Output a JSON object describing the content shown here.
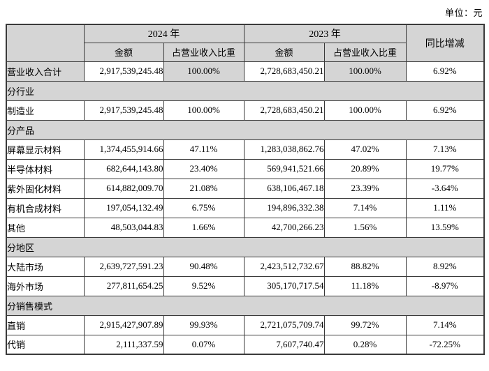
{
  "meta": {
    "unit_label": "单位：元"
  },
  "colors": {
    "header_bg": "#d5d5d5",
    "border": "#3a3a3a",
    "page_bg": "#ffffff"
  },
  "table": {
    "header": {
      "year_2024": "2024 年",
      "year_2023": "2023 年",
      "amount_2024": "金额",
      "ratio_2024": "占营业收入比重",
      "amount_2023": "金额",
      "ratio_2023": "占营业收入比重",
      "yoy": "同比增减"
    },
    "rows": [
      {
        "type": "data",
        "highlight": true,
        "label": "营业收入合计",
        "a2024": "2,917,539,245.48",
        "r2024": "100.00%",
        "a2023": "2,728,683,450.21",
        "r2023": "100.00%",
        "yoy": "6.92%"
      },
      {
        "type": "section",
        "label": "分行业"
      },
      {
        "type": "data",
        "highlight": false,
        "label": "制造业",
        "a2024": "2,917,539,245.48",
        "r2024": "100.00%",
        "a2023": "2,728,683,450.21",
        "r2023": "100.00%",
        "yoy": "6.92%"
      },
      {
        "type": "section",
        "label": "分产品"
      },
      {
        "type": "data",
        "highlight": false,
        "label": "屏幕显示材料",
        "a2024": "1,374,455,914.66",
        "r2024": "47.11%",
        "a2023": "1,283,038,862.76",
        "r2023": "47.02%",
        "yoy": "7.13%"
      },
      {
        "type": "data",
        "highlight": false,
        "label": "半导体材料",
        "a2024": "682,644,143.80",
        "r2024": "23.40%",
        "a2023": "569,941,521.66",
        "r2023": "20.89%",
        "yoy": "19.77%"
      },
      {
        "type": "data",
        "highlight": false,
        "label": "紫外固化材料",
        "a2024": "614,882,009.70",
        "r2024": "21.08%",
        "a2023": "638,106,467.18",
        "r2023": "23.39%",
        "yoy": "-3.64%"
      },
      {
        "type": "data",
        "highlight": false,
        "label": "有机合成材料",
        "a2024": "197,054,132.49",
        "r2024": "6.75%",
        "a2023": "194,896,332.38",
        "r2023": "7.14%",
        "yoy": "1.11%"
      },
      {
        "type": "data",
        "highlight": false,
        "label": "其他",
        "a2024": "48,503,044.83",
        "r2024": "1.66%",
        "a2023": "42,700,266.23",
        "r2023": "1.56%",
        "yoy": "13.59%"
      },
      {
        "type": "section",
        "label": "分地区"
      },
      {
        "type": "data",
        "highlight": false,
        "label": "大陆市场",
        "a2024": "2,639,727,591.23",
        "r2024": "90.48%",
        "a2023": "2,423,512,732.67",
        "r2023": "88.82%",
        "yoy": "8.92%"
      },
      {
        "type": "data",
        "highlight": false,
        "label": "海外市场",
        "a2024": "277,811,654.25",
        "r2024": "9.52%",
        "a2023": "305,170,717.54",
        "r2023": "11.18%",
        "yoy": "-8.97%"
      },
      {
        "type": "section",
        "label": "分销售模式"
      },
      {
        "type": "data",
        "highlight": false,
        "label": "直销",
        "a2024": "2,915,427,907.89",
        "r2024": "99.93%",
        "a2023": "2,721,075,709.74",
        "r2023": "99.72%",
        "yoy": "7.14%"
      },
      {
        "type": "data",
        "highlight": false,
        "label": "代销",
        "a2024": "2,111,337.59",
        "r2024": "0.07%",
        "a2023": "7,607,740.47",
        "r2023": "0.28%",
        "yoy": "-72.25%"
      }
    ]
  }
}
